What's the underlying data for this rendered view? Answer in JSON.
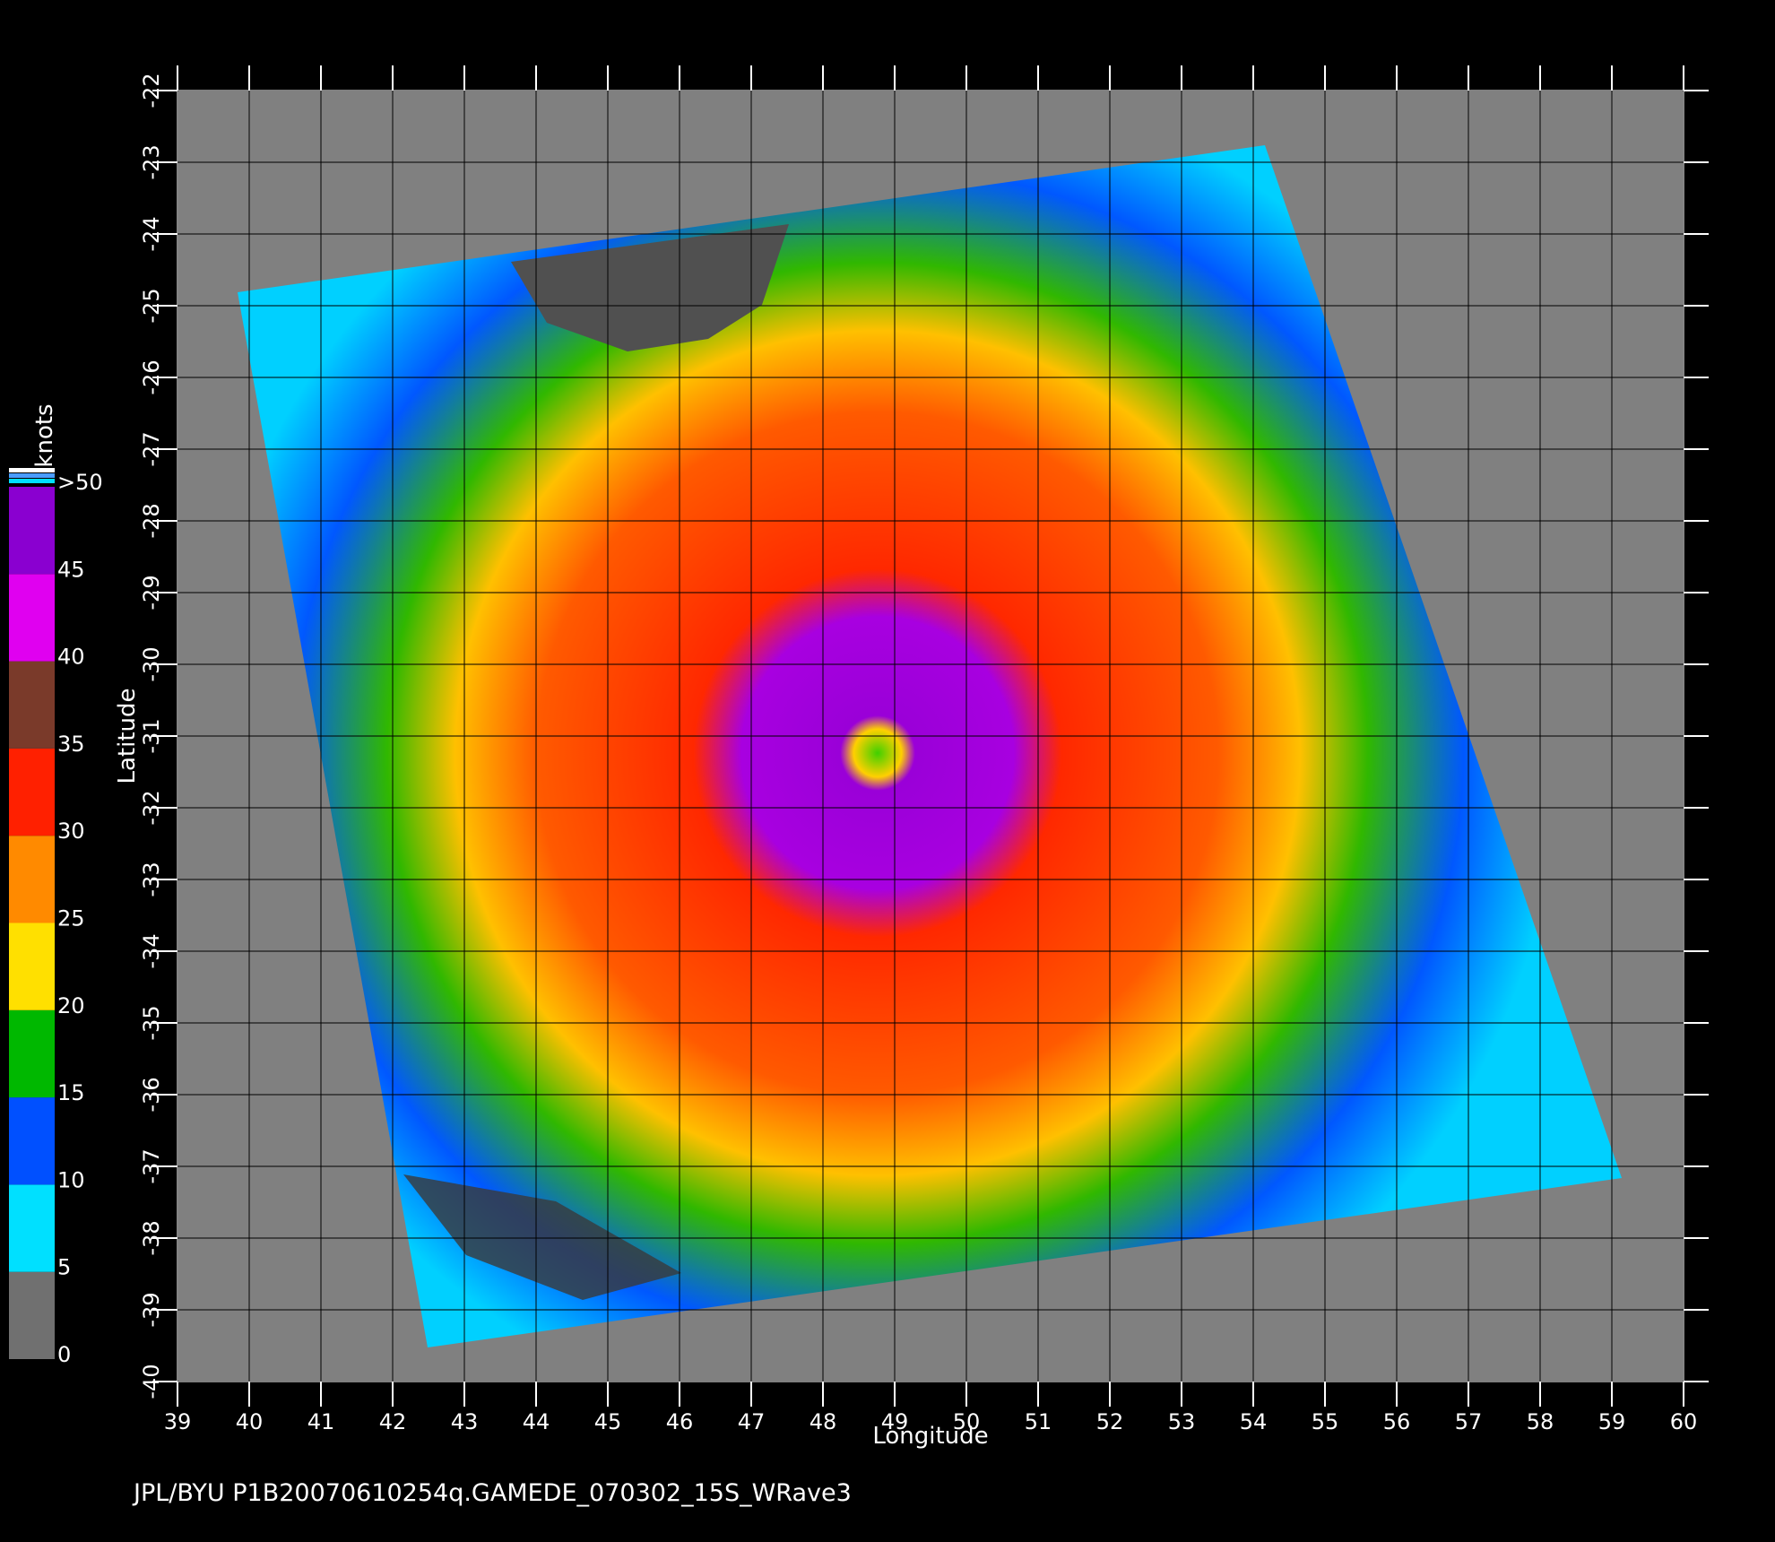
{
  "map": {
    "xlabel": "Longitude",
    "ylabel": "Latitude",
    "xlim": [
      39,
      60
    ],
    "ylim": [
      -40,
      -22
    ],
    "xticks": [
      39,
      40,
      41,
      42,
      43,
      44,
      45,
      46,
      47,
      48,
      49,
      50,
      51,
      52,
      53,
      54,
      55,
      56,
      57,
      58,
      59,
      60
    ],
    "yticks": [
      -22,
      -23,
      -24,
      -25,
      -26,
      -27,
      -28,
      -29,
      -30,
      -31,
      -32,
      -33,
      -34,
      -35,
      -36,
      -37,
      -38,
      -39,
      -40
    ]
  },
  "colorbar": {
    "label": "knots",
    "ticks": [
      0,
      5,
      10,
      15,
      20,
      25,
      30,
      35,
      40,
      45,
      {
        "value": 50,
        "label": ">50"
      }
    ],
    "colors": [
      "#707070",
      "#00e0ff",
      "#0050ff",
      "#00b800",
      "#ffe000",
      "#ff8a00",
      "#ff2000",
      "#7a3a2a",
      "#e000f0",
      "#8a00d0"
    ]
  },
  "footer": "JPL/BYU  P1B20070610254q.GAMEDE_070302_15S_WRave3"
}
